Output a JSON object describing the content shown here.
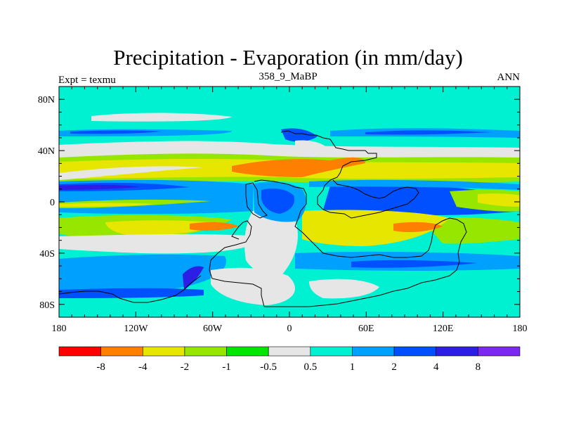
{
  "title": "Precipitation - Evaporation (in mm/day)",
  "subtitle_left": "Expt = texmu",
  "subtitle_center": "358_9_MaBP",
  "subtitle_right": "ANN",
  "map": {
    "lon_range": [
      -180,
      180
    ],
    "lat_range": [
      -90,
      90
    ],
    "x_ticks": [
      {
        "value": -180,
        "label": "180"
      },
      {
        "value": -120,
        "label": "120W"
      },
      {
        "value": -60,
        "label": "60W"
      },
      {
        "value": 0,
        "label": "0"
      },
      {
        "value": 60,
        "label": "60E"
      },
      {
        "value": 120,
        "label": "120E"
      },
      {
        "value": 180,
        "label": "180"
      }
    ],
    "y_ticks": [
      {
        "value": 80,
        "label": "80N"
      },
      {
        "value": 40,
        "label": "40N"
      },
      {
        "value": 0,
        "label": "0"
      },
      {
        "value": -40,
        "label": "40S"
      },
      {
        "value": -80,
        "label": "80S"
      }
    ],
    "background_color": "#00f0d2"
  },
  "colorbar": {
    "colors": [
      "#ff0000",
      "#ff8000",
      "#e6e600",
      "#96e600",
      "#00e600",
      "#e6e6e6",
      "#00f0d2",
      "#00a0ff",
      "#0050ff",
      "#2d1ee6",
      "#7d28f0"
    ],
    "labels": [
      "-8",
      "-4",
      "-2",
      "-1",
      "-0.5",
      "0.5",
      "1",
      "2",
      "4",
      "8"
    ]
  }
}
